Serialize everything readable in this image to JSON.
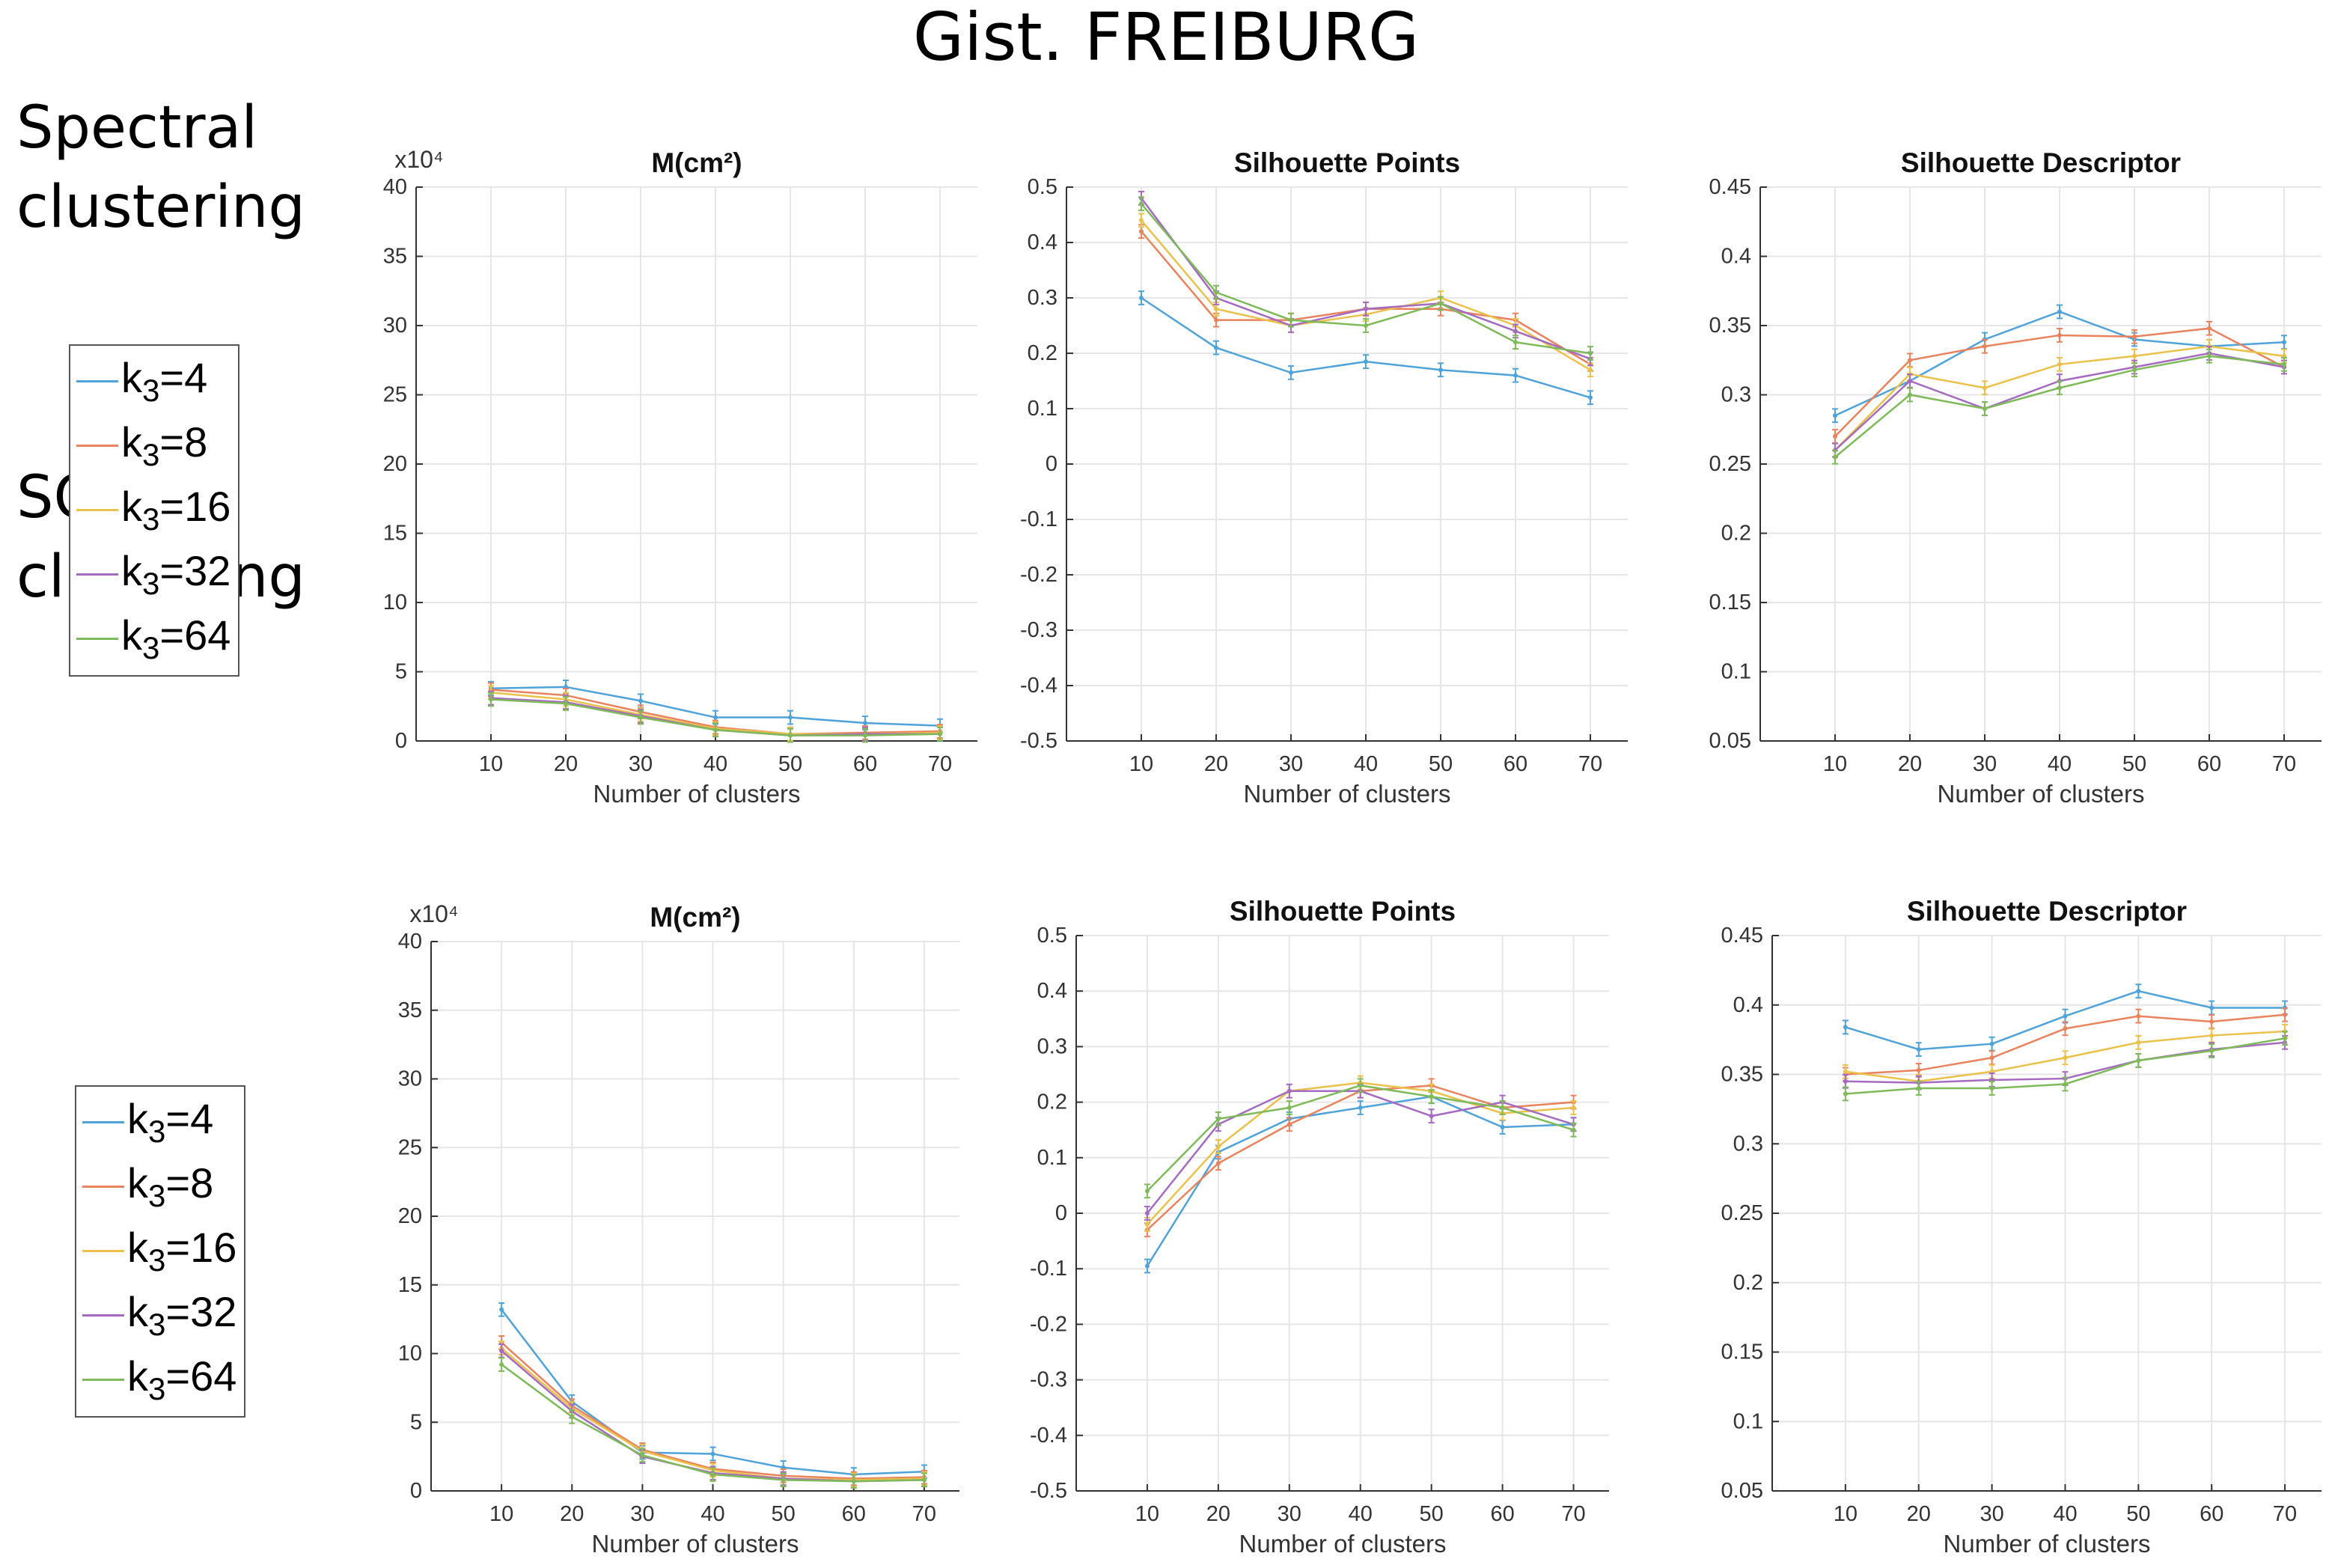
{
  "title": "Gist. FREIBURG",
  "rows": [
    {
      "label_line1": "Spectral",
      "label_line2": "clustering"
    },
    {
      "label_line1": "SOM",
      "label_line2": "clustering"
    }
  ],
  "legend": {
    "prefix": "k",
    "subscript": "3",
    "entries": [
      "=4",
      "=8",
      "=16",
      "=32",
      "=64"
    ]
  },
  "colors": [
    "#4FA3D9",
    "#E8835E",
    "#EAC14B",
    "#A46BC0",
    "#7FBA5A"
  ],
  "chart_data": [
    {
      "id": "spectral-m",
      "type": "line",
      "title": "M(cm²)",
      "xlabel": "Number of clusters",
      "ylabel": "",
      "exponent_label": "x10⁴",
      "x": [
        10,
        20,
        30,
        40,
        50,
        60,
        70
      ],
      "xlim": [
        0,
        75
      ],
      "ylim": [
        0,
        40
      ],
      "yticks": [
        0,
        5,
        10,
        15,
        20,
        25,
        30,
        35,
        40
      ],
      "grid": true,
      "legend": "left of row",
      "series": [
        {
          "name": "k3=4",
          "values": [
            3.8,
            3.9,
            2.9,
            1.7,
            1.7,
            1.3,
            1.1
          ]
        },
        {
          "name": "k3=8",
          "values": [
            3.7,
            3.3,
            2.1,
            1.0,
            0.5,
            0.6,
            0.7
          ]
        },
        {
          "name": "k3=16",
          "values": [
            3.5,
            3.0,
            1.9,
            0.9,
            0.5,
            0.5,
            0.6
          ]
        },
        {
          "name": "k3=32",
          "values": [
            3.1,
            2.8,
            1.8,
            0.8,
            0.4,
            0.5,
            0.5
          ]
        },
        {
          "name": "k3=64",
          "values": [
            3.0,
            2.7,
            1.7,
            0.8,
            0.4,
            0.4,
            0.5
          ]
        }
      ]
    },
    {
      "id": "spectral-sp",
      "type": "line",
      "title": "Silhouette Points",
      "xlabel": "Number of clusters",
      "ylabel": "",
      "x": [
        10,
        20,
        30,
        40,
        50,
        60,
        70
      ],
      "xlim": [
        0,
        75
      ],
      "ylim": [
        -0.5,
        0.5
      ],
      "yticks": [
        -0.5,
        -0.4,
        -0.3,
        -0.2,
        -0.1,
        0,
        0.1,
        0.2,
        0.3,
        0.4,
        0.5
      ],
      "grid": true,
      "legend": "left of row",
      "series": [
        {
          "name": "k3=4",
          "values": [
            0.3,
            0.21,
            0.165,
            0.185,
            0.17,
            0.16,
            0.12
          ]
        },
        {
          "name": "k3=8",
          "values": [
            0.42,
            0.26,
            0.26,
            0.28,
            0.28,
            0.26,
            0.18
          ]
        },
        {
          "name": "k3=16",
          "values": [
            0.44,
            0.28,
            0.25,
            0.27,
            0.3,
            0.25,
            0.17
          ]
        },
        {
          "name": "k3=32",
          "values": [
            0.48,
            0.3,
            0.25,
            0.28,
            0.29,
            0.24,
            0.19
          ]
        },
        {
          "name": "k3=64",
          "values": [
            0.47,
            0.31,
            0.26,
            0.25,
            0.29,
            0.22,
            0.2
          ]
        }
      ]
    },
    {
      "id": "spectral-sd",
      "type": "line",
      "title": "Silhouette Descriptor",
      "xlabel": "Number of clusters",
      "ylabel": "",
      "x": [
        10,
        20,
        30,
        40,
        50,
        60,
        70
      ],
      "xlim": [
        0,
        75
      ],
      "ylim": [
        0.05,
        0.45
      ],
      "yticks": [
        0.05,
        0.1,
        0.15,
        0.2,
        0.25,
        0.3,
        0.35,
        0.4,
        0.45
      ],
      "grid": true,
      "legend": "left of row",
      "series": [
        {
          "name": "k3=4",
          "values": [
            0.285,
            0.31,
            0.34,
            0.36,
            0.34,
            0.335,
            0.338
          ]
        },
        {
          "name": "k3=8",
          "values": [
            0.27,
            0.325,
            0.335,
            0.343,
            0.342,
            0.348,
            0.32
          ]
        },
        {
          "name": "k3=16",
          "values": [
            0.26,
            0.315,
            0.305,
            0.322,
            0.328,
            0.335,
            0.328
          ]
        },
        {
          "name": "k3=32",
          "values": [
            0.26,
            0.31,
            0.29,
            0.31,
            0.32,
            0.33,
            0.32
          ]
        },
        {
          "name": "k3=64",
          "values": [
            0.255,
            0.3,
            0.29,
            0.305,
            0.318,
            0.328,
            0.322
          ]
        }
      ]
    },
    {
      "id": "som-m",
      "type": "line",
      "title": "M(cm²)",
      "xlabel": "Number of clusters",
      "ylabel": "",
      "exponent_label": "x10⁴",
      "x": [
        10,
        20,
        30,
        40,
        50,
        60,
        70
      ],
      "xlim": [
        0,
        75
      ],
      "ylim": [
        0,
        40
      ],
      "yticks": [
        0,
        5,
        10,
        15,
        20,
        25,
        30,
        35,
        40
      ],
      "grid": true,
      "legend": "left of row",
      "series": [
        {
          "name": "k3=4",
          "values": [
            13.2,
            6.5,
            2.8,
            2.7,
            1.7,
            1.2,
            1.4
          ]
        },
        {
          "name": "k3=8",
          "values": [
            10.8,
            6.2,
            3.0,
            1.6,
            1.1,
            0.9,
            1.0
          ]
        },
        {
          "name": "k3=16",
          "values": [
            10.4,
            6.0,
            2.9,
            1.5,
            0.9,
            0.8,
            0.9
          ]
        },
        {
          "name": "k3=32",
          "values": [
            10.2,
            5.8,
            2.5,
            1.3,
            0.9,
            0.7,
            0.8
          ]
        },
        {
          "name": "k3=64",
          "values": [
            9.2,
            5.4,
            2.6,
            1.2,
            0.8,
            0.7,
            0.8
          ]
        }
      ]
    },
    {
      "id": "som-sp",
      "type": "line",
      "title": "Silhouette Points",
      "xlabel": "Number of clusters",
      "ylabel": "",
      "x": [
        10,
        20,
        30,
        40,
        50,
        60,
        70
      ],
      "xlim": [
        0,
        75
      ],
      "ylim": [
        -0.5,
        0.5
      ],
      "yticks": [
        -0.5,
        -0.4,
        -0.3,
        -0.2,
        -0.1,
        0,
        0.1,
        0.2,
        0.3,
        0.4,
        0.5
      ],
      "grid": true,
      "legend": "left of row",
      "series": [
        {
          "name": "k3=4",
          "values": [
            -0.095,
            0.11,
            0.17,
            0.19,
            0.21,
            0.155,
            0.16
          ]
        },
        {
          "name": "k3=8",
          "values": [
            -0.03,
            0.09,
            0.16,
            0.22,
            0.23,
            0.19,
            0.2
          ]
        },
        {
          "name": "k3=16",
          "values": [
            -0.02,
            0.12,
            0.22,
            0.235,
            0.22,
            0.18,
            0.19
          ]
        },
        {
          "name": "k3=32",
          "values": [
            0.0,
            0.16,
            0.22,
            0.22,
            0.175,
            0.2,
            0.16
          ]
        },
        {
          "name": "k3=64",
          "values": [
            0.04,
            0.17,
            0.19,
            0.23,
            0.21,
            0.19,
            0.15
          ]
        }
      ]
    },
    {
      "id": "som-sd",
      "type": "line",
      "title": "Silhouette Descriptor",
      "xlabel": "Number of clusters",
      "ylabel": "",
      "x": [
        10,
        20,
        30,
        40,
        50,
        60,
        70
      ],
      "xlim": [
        0,
        75
      ],
      "ylim": [
        0.05,
        0.45
      ],
      "yticks": [
        0.05,
        0.1,
        0.15,
        0.2,
        0.25,
        0.3,
        0.35,
        0.4,
        0.45
      ],
      "grid": true,
      "legend": "left of row",
      "series": [
        {
          "name": "k3=4",
          "values": [
            0.384,
            0.368,
            0.372,
            0.392,
            0.41,
            0.398,
            0.398
          ]
        },
        {
          "name": "k3=8",
          "values": [
            0.35,
            0.353,
            0.362,
            0.383,
            0.392,
            0.388,
            0.393
          ]
        },
        {
          "name": "k3=16",
          "values": [
            0.352,
            0.345,
            0.352,
            0.362,
            0.373,
            0.378,
            0.381
          ]
        },
        {
          "name": "k3=32",
          "values": [
            0.345,
            0.344,
            0.346,
            0.347,
            0.36,
            0.368,
            0.373
          ]
        },
        {
          "name": "k3=64",
          "values": [
            0.336,
            0.34,
            0.34,
            0.343,
            0.36,
            0.367,
            0.376
          ]
        }
      ]
    }
  ]
}
